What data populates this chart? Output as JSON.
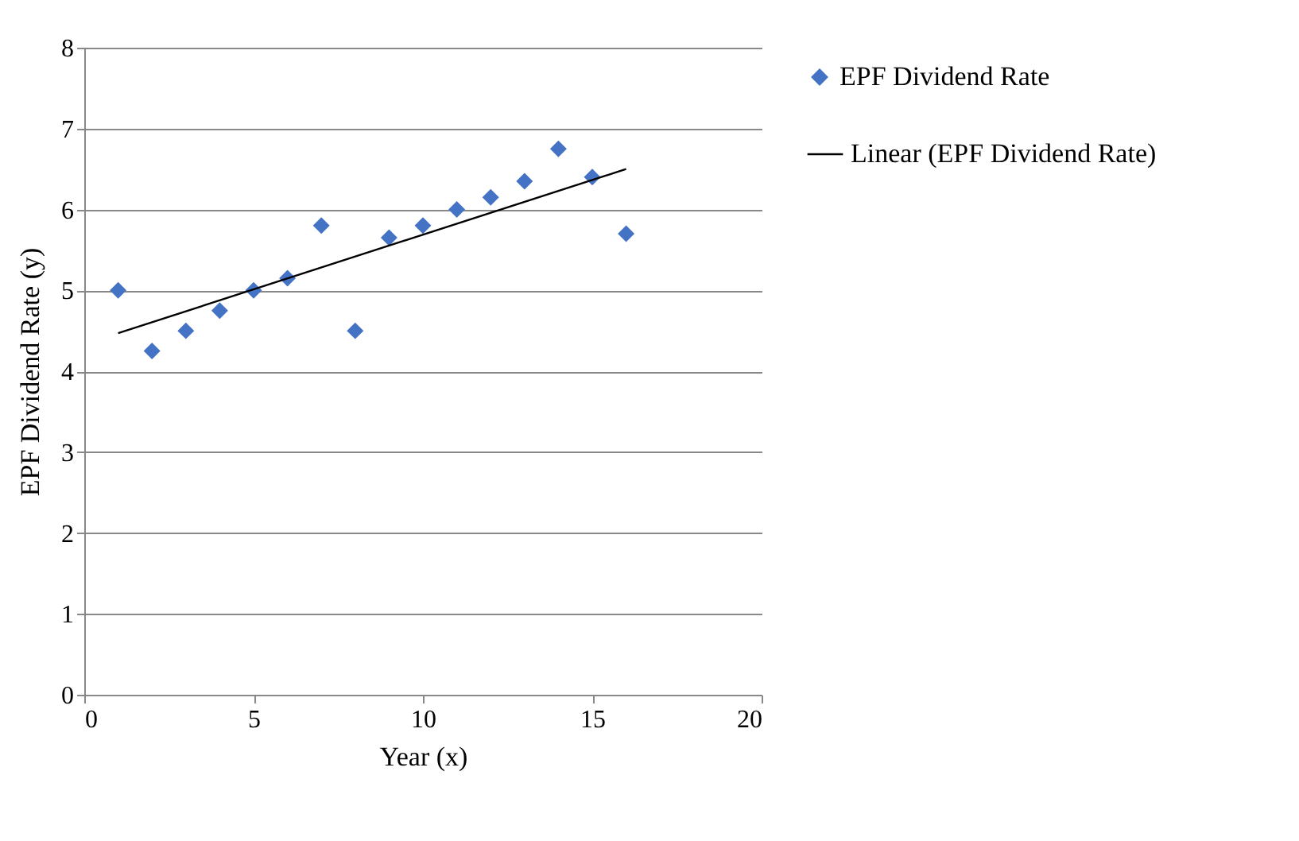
{
  "chart_data": {
    "type": "scatter",
    "xlabel": "Year (x)",
    "ylabel": "EPF Dividend Rate (y)",
    "x": [
      1,
      2,
      3,
      4,
      5,
      6,
      7,
      8,
      9,
      10,
      11,
      12,
      13,
      14,
      15,
      16
    ],
    "series": [
      {
        "name": "EPF Dividend Rate",
        "color": "#4472c4",
        "marker": "diamond",
        "values": [
          5.0,
          4.25,
          4.5,
          4.75,
          5.0,
          5.15,
          5.8,
          4.5,
          5.65,
          5.8,
          6.0,
          6.15,
          6.35,
          6.75,
          6.4,
          5.7
        ]
      },
      {
        "name": "Linear (EPF Dividend Rate)",
        "type": "line",
        "color": "#000000",
        "marker": "none",
        "x": [
          1,
          16
        ],
        "values": [
          4.47,
          6.5
        ]
      }
    ],
    "xlim": [
      0,
      20
    ],
    "xticks": [
      0,
      5,
      10,
      15,
      20
    ],
    "ylim": [
      0,
      8
    ],
    "yticks": [
      0,
      1,
      2,
      3,
      4,
      5,
      6,
      7,
      8
    ],
    "grid": "y",
    "legend": "right",
    "line_style": "solid"
  }
}
